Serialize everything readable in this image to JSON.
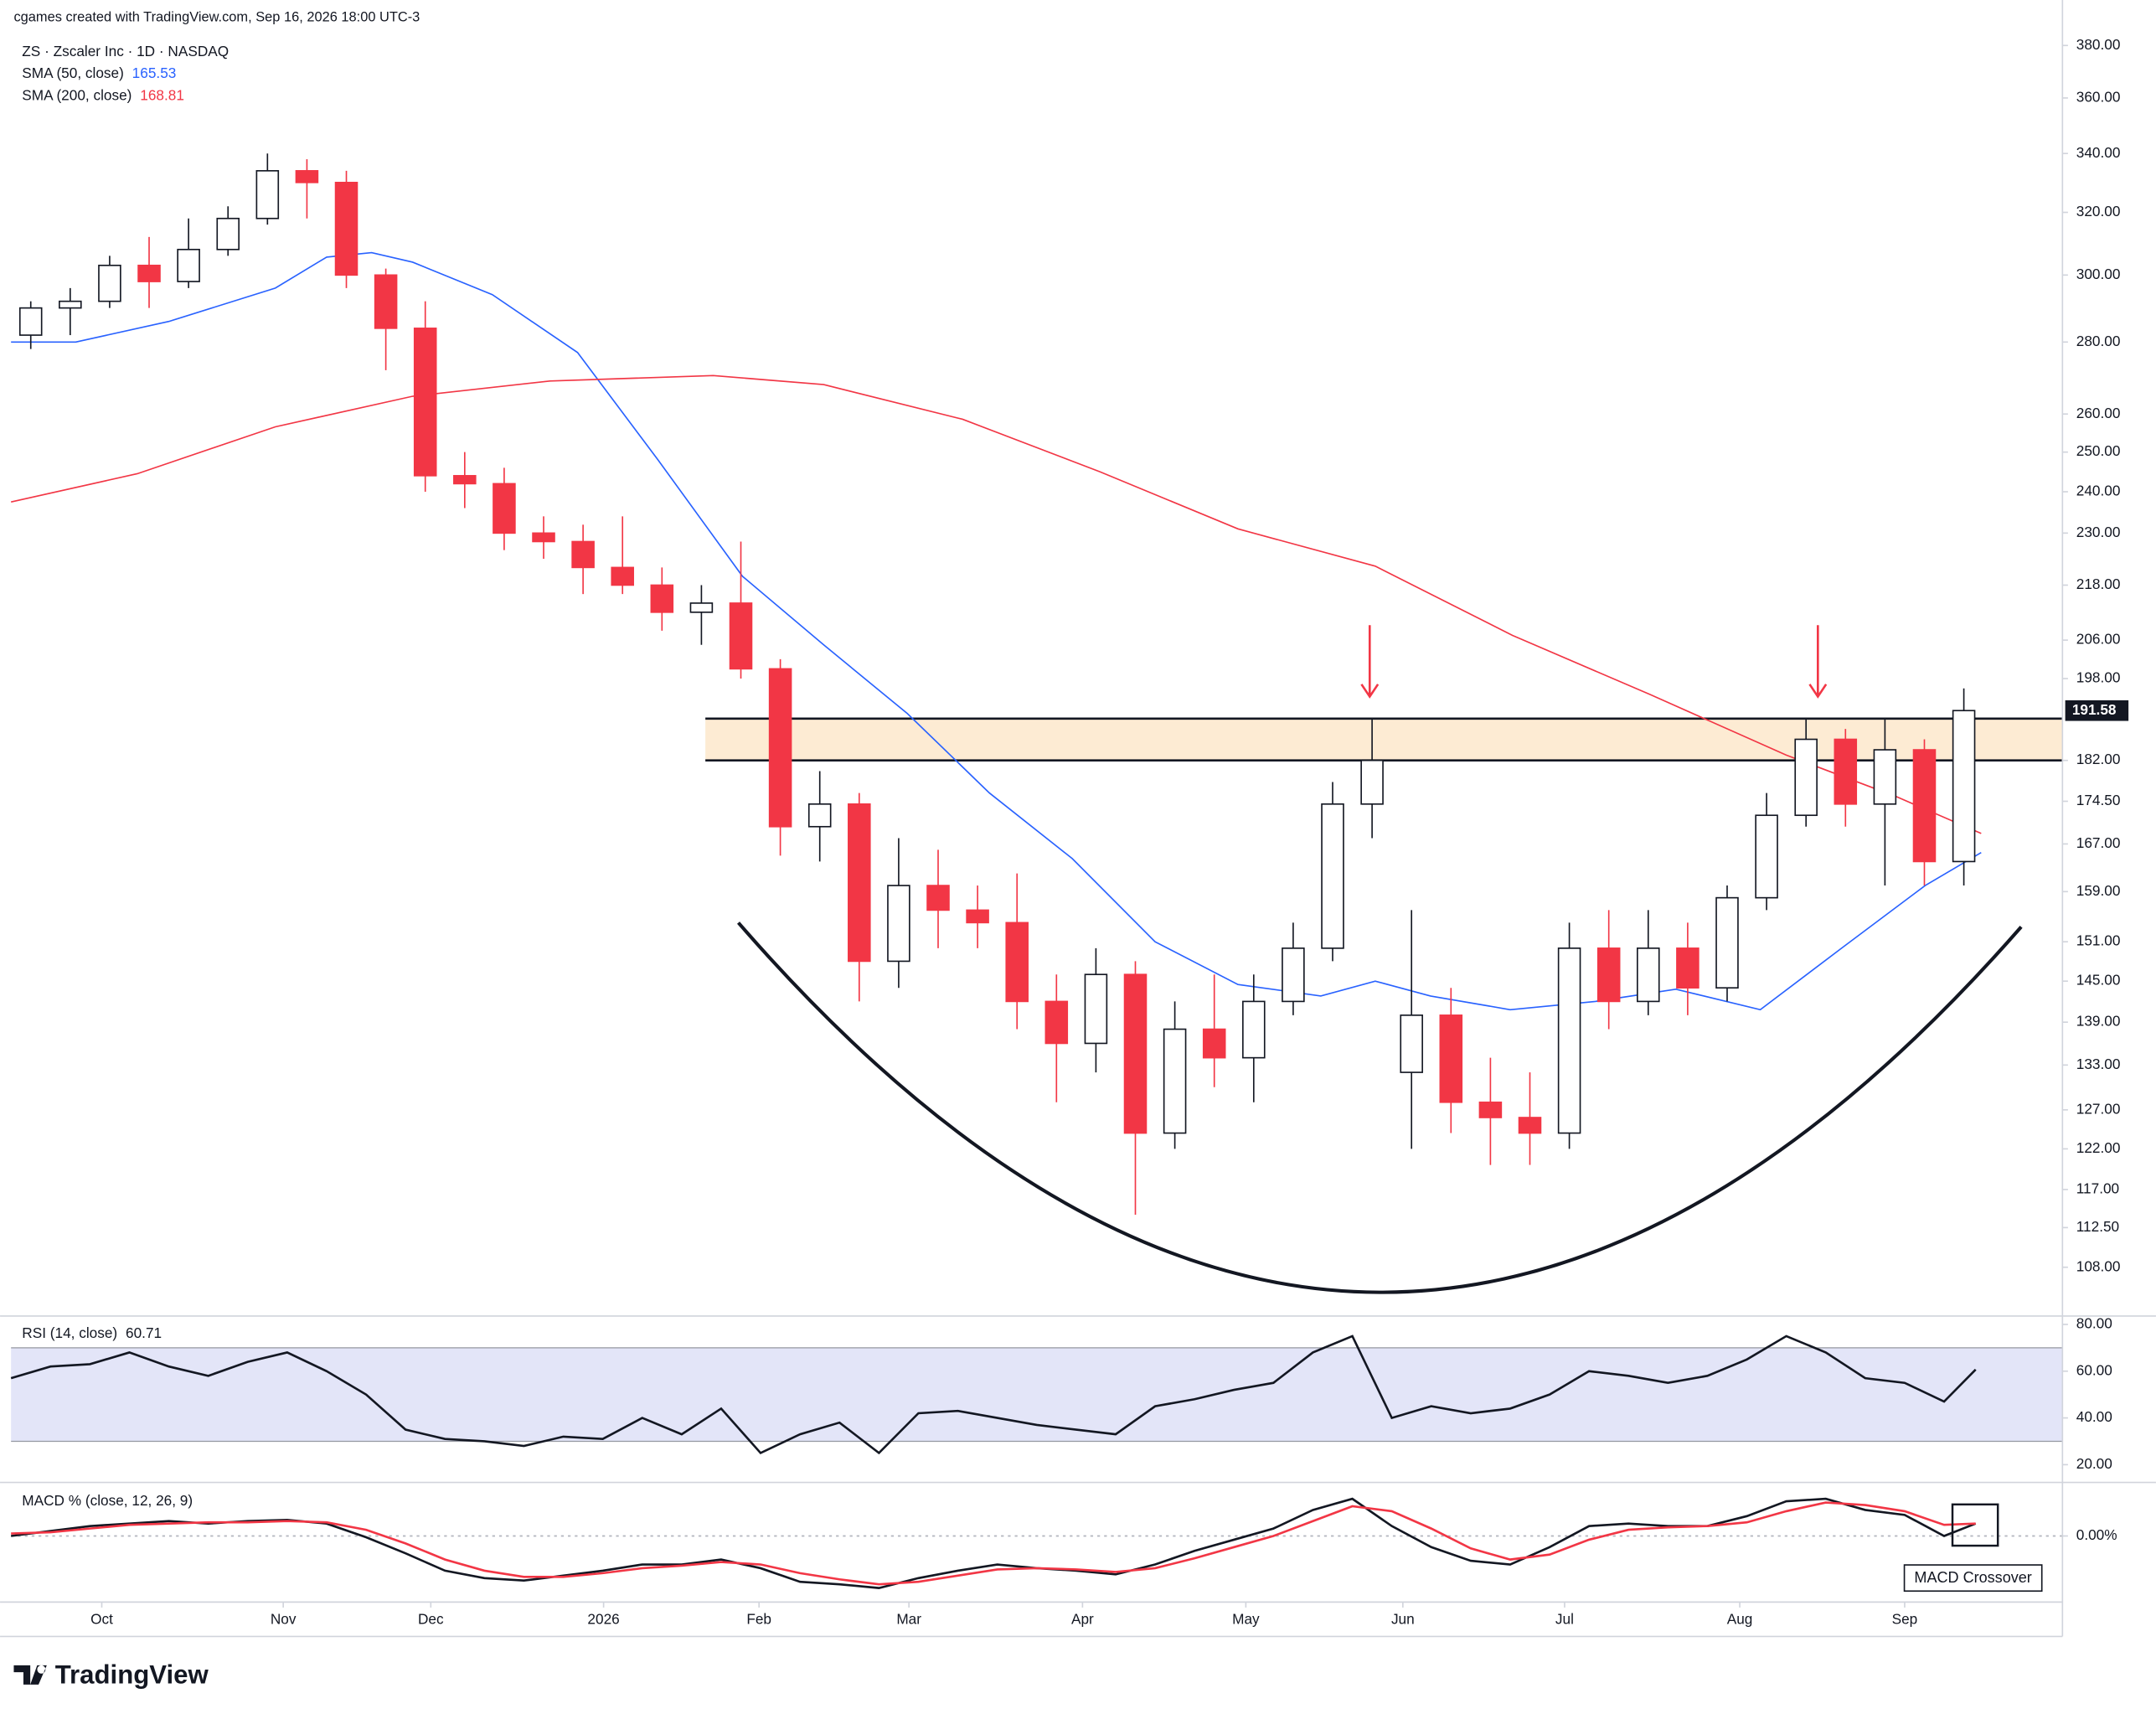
{
  "chart_data": [
    {
      "type": "candlestick",
      "subtitle": "cgames created with TradingView.com, Sep 16, 2026 18:00 UTC-3",
      "title": "ZS · Zscaler Inc · 1D · NASDAQ",
      "x": [
        2.5,
        7.5,
        12.5,
        17.5,
        22.5,
        27.5,
        32.5,
        37.5,
        42.5,
        47.5,
        52.5,
        57.5,
        62.5,
        67.5,
        72.5,
        77.5,
        82.5,
        87.5,
        92.5,
        97.5,
        102.5,
        107.5,
        112.5,
        117.5,
        122.5,
        127.5,
        132.5,
        137.5,
        142.5,
        147.5,
        152.5,
        157.5,
        162.5,
        167.5,
        172.5,
        177.5,
        182.5,
        187.5,
        192.5,
        197.5,
        202.5,
        207.5,
        212.5,
        217.5,
        222.5,
        227.5,
        232.5,
        237.5,
        242.5,
        247.5
      ],
      "open": [
        282,
        290,
        292,
        303,
        298,
        308,
        318,
        334,
        330,
        300,
        284,
        244,
        242,
        230,
        228,
        222,
        218,
        212,
        214,
        200,
        170,
        174,
        148,
        160,
        156,
        154,
        142,
        136,
        146,
        124,
        138,
        134,
        142,
        150,
        174,
        132,
        140,
        128,
        126,
        124,
        150,
        142,
        150,
        144,
        158,
        172,
        186,
        174,
        184,
        164
      ],
      "high": [
        292,
        296,
        306,
        312,
        318,
        322,
        340,
        338,
        334,
        302,
        292,
        250,
        246,
        234,
        232,
        234,
        222,
        218,
        228,
        202,
        180,
        176,
        168,
        166,
        160,
        162,
        146,
        150,
        148,
        142,
        146,
        146,
        154,
        178,
        190,
        156,
        144,
        134,
        132,
        154,
        156,
        156,
        154,
        160,
        176,
        190,
        188,
        190,
        186,
        196
      ],
      "low": [
        278,
        282,
        290,
        290,
        296,
        306,
        316,
        318,
        296,
        272,
        240,
        236,
        226,
        224,
        216,
        216,
        208,
        205,
        198,
        165,
        164,
        142,
        144,
        150,
        150,
        138,
        128,
        132,
        114,
        122,
        130,
        128,
        140,
        148,
        168,
        122,
        124,
        120,
        120,
        122,
        138,
        140,
        140,
        142,
        156,
        170,
        170,
        160,
        160,
        160
      ],
      "close": [
        290,
        292,
        303,
        298,
        308,
        318,
        334,
        330,
        300,
        284,
        244,
        242,
        230,
        228,
        222,
        218,
        212,
        214,
        200,
        170,
        174,
        148,
        160,
        156,
        154,
        142,
        136,
        146,
        124,
        138,
        134,
        142,
        150,
        174,
        182,
        140,
        128,
        126,
        124,
        150,
        142,
        150,
        144,
        158,
        172,
        186,
        174,
        184,
        164,
        191.58
      ],
      "up_color": "#ffffff",
      "down_color": "#f23645",
      "log_scale": true,
      "grid": false,
      "ylim": [
        103,
        386
      ],
      "yticks": [
        {
          "value": 380,
          "label": "380.00"
        },
        {
          "value": 360,
          "label": "360.00"
        },
        {
          "value": 340,
          "label": "340.00"
        },
        {
          "value": 320,
          "label": "320.00"
        },
        {
          "value": 300,
          "label": "300.00"
        },
        {
          "value": 280,
          "label": "280.00"
        },
        {
          "value": 260,
          "label": "260.00"
        },
        {
          "value": 250,
          "label": "250.00"
        },
        {
          "value": 240,
          "label": "240.00"
        },
        {
          "value": 230,
          "label": "230.00"
        },
        {
          "value": 218,
          "label": "218.00"
        },
        {
          "value": 206,
          "label": "206.00"
        },
        {
          "value": 198,
          "label": "198.00"
        },
        {
          "value": 182,
          "label": "182.00"
        },
        {
          "value": 174.5,
          "label": "174.50"
        },
        {
          "value": 167,
          "label": "167.00"
        },
        {
          "value": 159,
          "label": "159.00"
        },
        {
          "value": 151,
          "label": "151.00"
        },
        {
          "value": 145,
          "label": "145.00"
        },
        {
          "value": 139,
          "label": "139.00"
        },
        {
          "value": 133,
          "label": "133.00"
        },
        {
          "value": 127,
          "label": "127.00"
        },
        {
          "value": 122,
          "label": "122.00"
        },
        {
          "value": 117,
          "label": "117.00"
        },
        {
          "value": 112.5,
          "label": "112.50"
        },
        {
          "value": 108,
          "label": "108.00"
        }
      ],
      "xlim": [
        0,
        260
      ],
      "xticks": [
        {
          "value": 11.5,
          "label": "Oct"
        },
        {
          "value": 34.5,
          "label": "Nov"
        },
        {
          "value": 53.2,
          "label": "Dec"
        },
        {
          "value": 75.1,
          "label": "2026"
        },
        {
          "value": 94.8,
          "label": "Feb"
        },
        {
          "value": 113.8,
          "label": "Mar"
        },
        {
          "value": 135.8,
          "label": "Apr"
        },
        {
          "value": 156.5,
          "label": "May"
        },
        {
          "value": 176.4,
          "label": "Jun"
        },
        {
          "value": 196.9,
          "label": "Jul"
        },
        {
          "value": 219.1,
          "label": "Aug"
        },
        {
          "value": 240,
          "label": "Sep"
        }
      ],
      "overlays": [
        {
          "name": "SMA (50, close)",
          "color": "#2962ff",
          "last_value": 165.53,
          "x": [
            0,
            8.2,
            20,
            33.5,
            40,
            45.7,
            50.9,
            61,
            71.8,
            82,
            92.7,
            103,
            113.6,
            124,
            134.5,
            145,
            155.5,
            166,
            172.9,
            179.9,
            190,
            200.8,
            211,
            221.7,
            232,
            242.6,
            249.7
          ],
          "values": [
            280,
            280,
            286,
            296,
            305.6,
            307,
            304,
            294,
            277,
            248,
            220,
            205,
            191,
            176,
            164.5,
            151,
            144.5,
            142.8,
            145,
            142.8,
            140.8,
            142,
            143.8,
            140.8,
            150,
            160,
            165.53
          ]
        },
        {
          "name": "SMA (200, close)",
          "color": "#f23645",
          "last_value": 168.81,
          "x": [
            0,
            16,
            33.5,
            50.9,
            68.3,
            89,
            103,
            120.6,
            138,
            155.5,
            172.9,
            190.3,
            207.7,
            225,
            239,
            249.7
          ],
          "values": [
            237.5,
            244.5,
            256.6,
            264.8,
            269,
            270.5,
            268,
            258.6,
            245,
            231,
            222.3,
            207,
            194.8,
            183,
            175.3,
            168.81
          ]
        }
      ],
      "last_price": 191.58,
      "zone": {
        "low": 182,
        "high": 190,
        "x_start": 88,
        "color": "#fdebd3"
      },
      "arrows": {
        "x": [
          172.2,
          229
        ],
        "color": "#f23645"
      }
    },
    {
      "type": "line",
      "x": [
        0,
        5,
        10,
        15,
        20,
        25,
        30,
        35,
        40,
        45,
        50,
        55,
        60,
        65,
        70,
        75,
        80,
        85,
        90,
        95,
        100,
        105,
        110,
        115,
        120,
        125,
        130,
        135,
        140,
        145,
        150,
        155,
        160,
        165,
        170,
        175,
        180,
        185,
        190,
        195,
        200,
        205,
        210,
        215,
        220,
        225,
        230,
        235,
        240,
        245,
        249
      ],
      "series": [
        {
          "name": "RSI (14, close)",
          "color": "#131722",
          "last_value": 60.71,
          "values": [
            57,
            62,
            63,
            68,
            62,
            58,
            64,
            68,
            60,
            50,
            35,
            31,
            30,
            28,
            32,
            31,
            40,
            33,
            44,
            25,
            33,
            38,
            25,
            42,
            43,
            40,
            37,
            35,
            33,
            45,
            48,
            52,
            55,
            68,
            75,
            40,
            45,
            42,
            44,
            50,
            60,
            58,
            55,
            58,
            65,
            75,
            68,
            57,
            55,
            47,
            60.71
          ]
        }
      ],
      "ylim": [
        13,
        83
      ],
      "yticks": [
        {
          "value": 80,
          "label": "80.00"
        },
        {
          "value": 60,
          "label": "60.00"
        },
        {
          "value": 40,
          "label": "40.00"
        },
        {
          "value": 20,
          "label": "20.00"
        }
      ],
      "band": [
        30,
        70
      ],
      "band_color": "#e3e5f8"
    },
    {
      "type": "line",
      "title": "MACD % (close, 12, 26, 9)",
      "x": [
        0,
        5,
        10,
        15,
        20,
        25,
        30,
        35,
        40,
        45,
        50,
        55,
        60,
        65,
        70,
        75,
        80,
        85,
        90,
        95,
        100,
        105,
        110,
        115,
        120,
        125,
        130,
        135,
        140,
        145,
        150,
        155,
        160,
        165,
        170,
        175,
        180,
        185,
        190,
        195,
        200,
        205,
        210,
        215,
        220,
        225,
        230,
        235,
        240,
        245,
        249
      ],
      "series": [
        {
          "color": "#131722",
          "values": [
            0,
            0.4,
            0.8,
            1.0,
            1.2,
            1.0,
            1.2,
            1.3,
            1.0,
            -0.1,
            -1.4,
            -2.8,
            -3.4,
            -3.6,
            -3.2,
            -2.8,
            -2.3,
            -2.3,
            -1.9,
            -2.6,
            -3.7,
            -3.9,
            -4.2,
            -3.4,
            -2.8,
            -2.3,
            -2.6,
            -2.8,
            -3.1,
            -2.3,
            -1.2,
            -0.3,
            0.6,
            2.1,
            3.0,
            0.8,
            -0.9,
            -2.0,
            -2.3,
            -0.9,
            0.8,
            1.0,
            0.8,
            0.8,
            1.6,
            2.8,
            3.0,
            2.1,
            1.7,
            0,
            1.0
          ]
        },
        {
          "color": "#f23645",
          "values": [
            0.2,
            0.3,
            0.6,
            0.9,
            1.0,
            1.1,
            1.1,
            1.2,
            1.1,
            0.5,
            -0.6,
            -1.9,
            -2.8,
            -3.3,
            -3.3,
            -3.0,
            -2.6,
            -2.4,
            -2.1,
            -2.3,
            -3.0,
            -3.5,
            -3.9,
            -3.7,
            -3.2,
            -2.7,
            -2.6,
            -2.7,
            -2.9,
            -2.6,
            -1.8,
            -0.9,
            0,
            1.2,
            2.4,
            2.0,
            0.6,
            -1.0,
            -1.9,
            -1.5,
            -0.3,
            0.5,
            0.7,
            0.8,
            1.1,
            2.0,
            2.7,
            2.5,
            2.0,
            0.9,
            1.0
          ]
        }
      ],
      "ylim": [
        -5,
        4.1
      ],
      "yticks": [
        {
          "value": 0,
          "label": "0.00%"
        }
      ],
      "annotation": "MACD Crossover"
    }
  ],
  "footer": {
    "brand": "TradingView"
  }
}
